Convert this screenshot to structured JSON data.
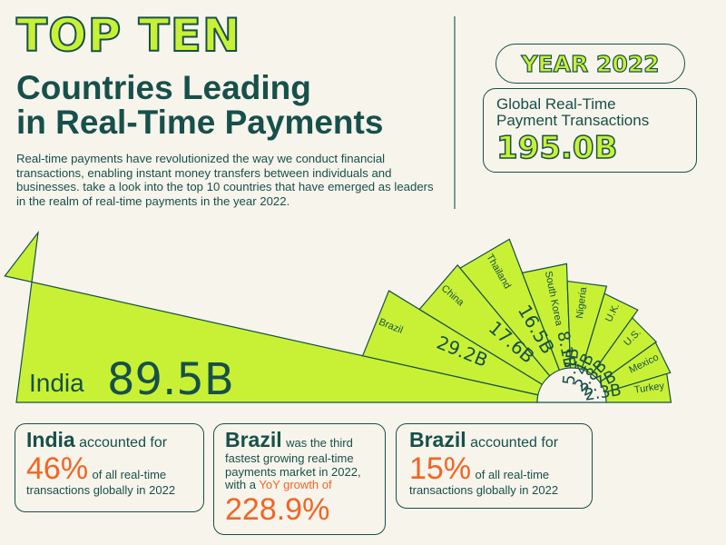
{
  "header": {
    "headline": "TOP TEN",
    "title_line1": "Countries Leading",
    "title_line2": "in Real-Time Payments",
    "intro": "Real-time payments have revolutionized the way we conduct financial transactions, enabling instant money transfers between individuals and businesses. take a look into the top 10 countries that have emerged as leaders in the realm of real-time payments in the year 2022."
  },
  "year_badge": "YEAR 2022",
  "global": {
    "label_line1": "Global Real-Time",
    "label_line2": "Payment Transactions",
    "value": "195.0B"
  },
  "colors": {
    "lime": "#c8f135",
    "dark_green": "#17504a",
    "orange": "#f26522",
    "background": "#f7f4ec"
  },
  "chart_data": {
    "type": "bar",
    "layout": "fan",
    "unit": "B",
    "categories": [
      "India",
      "Brazil",
      "China",
      "Thailand",
      "South Korea",
      "Nigeria",
      "U.K.",
      "U.S.",
      "Mexico",
      "Turkey"
    ],
    "values": [
      89.5,
      29.2,
      17.6,
      16.5,
      8.1,
      5.1,
      4,
      2.8,
      2.7,
      2.3
    ],
    "value_labels": [
      "89.5B",
      "29.2B",
      "17.6B",
      "16.5B",
      "8.1B",
      "5.1B",
      "4B",
      "2.8B",
      "2.7B",
      "2.3B"
    ]
  },
  "cards": [
    {
      "strong": "India",
      "text1": "accounted for",
      "big": "46%",
      "text2": "of all real-time",
      "text3": "transactions globally in 2022"
    },
    {
      "strong": "Brazil",
      "text1": "was the third",
      "text2": "fastest growing real-time",
      "text3": "payments market in 2022,",
      "text4": "with a",
      "accent": "YoY growth of",
      "big": "228.9%"
    },
    {
      "strong": "Brazil",
      "text1": "accounted for",
      "big": "15%",
      "text2": "of all real-time",
      "text3": "transactions globally in 2022"
    }
  ]
}
